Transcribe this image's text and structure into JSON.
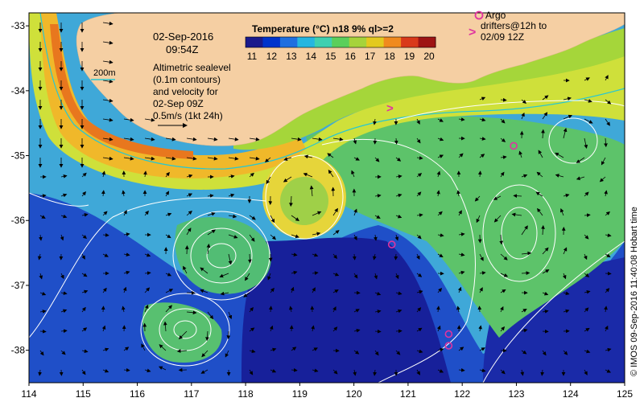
{
  "date": "02-Sep-2016",
  "time": "09:54Z",
  "colorbar": {
    "title": "Temperature (°C) n18 9% ql>=2",
    "ticks": [
      "11",
      "12",
      "13",
      "14",
      "15",
      "16",
      "17",
      "18",
      "19",
      "20"
    ],
    "colors": [
      "#1a1a8c",
      "#0033cc",
      "#1f6fe0",
      "#26b6e0",
      "#3fd0b0",
      "#5bcf5b",
      "#a6d33a",
      "#e3c91e",
      "#f08a1e",
      "#d9391a",
      "#9e1414"
    ]
  },
  "contour_label": "200m",
  "notes": [
    "Altimetric sealevel",
    "(0.1m contours)",
    "and velocity for",
    "02-Sep 09Z",
    "0.5m/s (1kt 24h)"
  ],
  "legend": {
    "argo": "Argo",
    "drifters_line1": "drifters@12h to",
    "drifters_line2": "02/09 12Z"
  },
  "axes": {
    "x_ticks": [
      "114",
      "115",
      "116",
      "117",
      "118",
      "119",
      "120",
      "121",
      "122",
      "123",
      "124",
      "125"
    ],
    "y_ticks": [
      "-33",
      "-34",
      "-35",
      "-36",
      "-37",
      "-38"
    ]
  },
  "credit": "© IMOS 09-Sep-2016 11:40:08 Hobart time",
  "colors": {
    "land": "#f5cfa3",
    "argo": "#e0349f",
    "contour": "#ffffff",
    "isobath": "#27c7d2",
    "vector": "#000000"
  },
  "argo_floats": [
    {
      "lon": 122.95,
      "lat": -34.85
    },
    {
      "lon": 120.7,
      "lat": -36.37
    },
    {
      "lon": 121.75,
      "lat": -37.75
    },
    {
      "lon": 121.75,
      "lat": -37.93
    }
  ],
  "drifters": [
    {
      "lon": 120.6,
      "lat": -34.33
    }
  ]
}
